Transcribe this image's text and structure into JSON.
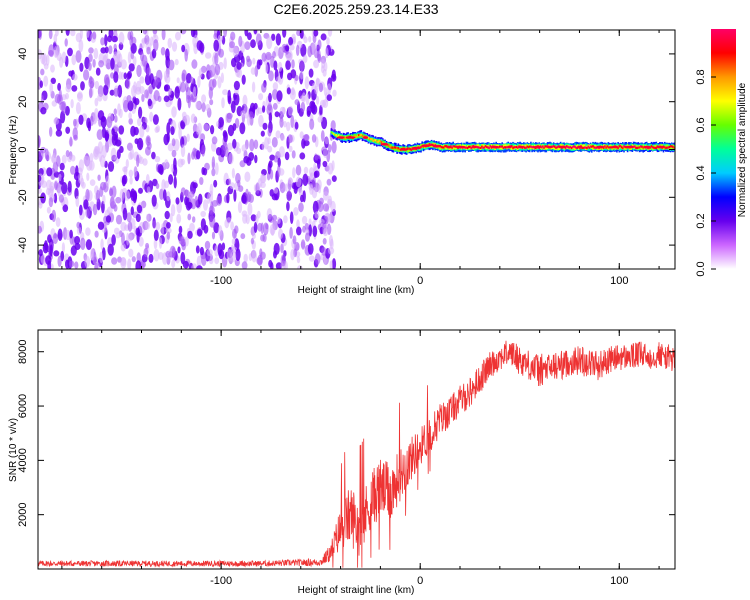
{
  "title": "C2E6.2025.259.23.14.E33",
  "chart_data": [
    {
      "type": "heatmap",
      "title": "C2E6.2025.259.23.14.E33",
      "xlabel": "Height of straight line (km)",
      "ylabel": "Frequency (Hz)",
      "xlim": [
        -192,
        128
      ],
      "ylim": [
        -50,
        50
      ],
      "xticks": [
        -100,
        0,
        100
      ],
      "yticks": [
        -40,
        -20,
        0,
        20,
        40
      ],
      "colorbar": {
        "label": "Normalized spectral amplitude",
        "range": [
          0,
          1
        ],
        "ticks": [
          "0.0",
          "0.2",
          "0.4",
          "0.6",
          "0.8"
        ],
        "colormap": [
          "#ffffff",
          "#cc66ff",
          "#6600ee",
          "#0000ff",
          "#00ccff",
          "#00ff99",
          "#66ff00",
          "#ffff00",
          "#ff9900",
          "#ff0000",
          "#ff0066"
        ]
      },
      "noise_region": {
        "x_from": -192,
        "x_to": -46,
        "freq_from": -50,
        "freq_to": 50,
        "amplitude": "0.0-0.15"
      },
      "signal_track": {
        "x": [
          -45,
          -40,
          -35,
          -30,
          -25,
          -20,
          -15,
          -10,
          -5,
          0,
          5,
          10,
          20,
          40,
          60,
          80,
          100,
          128
        ],
        "freq": [
          7,
          5,
          5,
          6,
          4,
          3,
          1,
          0,
          0,
          1,
          2,
          1,
          1,
          1,
          1,
          1,
          1,
          1
        ],
        "peak_amplitude": [
          0.2,
          0.7,
          0.8,
          0.7,
          0.6,
          0.7,
          0.8,
          0.85,
          0.9,
          0.9,
          0.95,
          0.95,
          1.0,
          1.0,
          1.0,
          1.0,
          0.95,
          0.9
        ]
      }
    },
    {
      "type": "line",
      "xlabel": "Height of straight line (km)",
      "ylabel": "SNR (10 * v/v)",
      "xlim": [
        -192,
        128
      ],
      "ylim": [
        0,
        8800
      ],
      "xticks": [
        -100,
        0,
        100
      ],
      "yticks": [
        2000,
        4000,
        6000,
        8000
      ],
      "color": "#ee3333",
      "series": [
        {
          "x": [
            -192,
            -160,
            -120,
            -80,
            -50,
            -45,
            -40,
            -35,
            -30,
            -25,
            -20,
            -15,
            -10,
            -5,
            0,
            5,
            10,
            15,
            20,
            25,
            30,
            35,
            40,
            45,
            50,
            55,
            60,
            65,
            70,
            75,
            80,
            85,
            90,
            95,
            100,
            105,
            110,
            115,
            120,
            128
          ],
          "values": [
            200,
            200,
            200,
            200,
            250,
            600,
            1500,
            2000,
            1500,
            2500,
            3000,
            2800,
            3500,
            4000,
            4500,
            5000,
            5500,
            5800,
            6200,
            6500,
            7000,
            7500,
            7800,
            8000,
            7700,
            7500,
            7300,
            7400,
            7500,
            7600,
            7700,
            7600,
            7500,
            7700,
            7800,
            7800,
            7900,
            7800,
            7900,
            7700
          ],
          "noise_band": [
            150,
            150,
            150,
            150,
            200,
            500,
            1200,
            1600,
            1600,
            1500,
            1600,
            1500,
            1400,
            1200,
            1000,
            1000,
            900,
            800,
            800,
            800,
            800,
            700,
            700,
            700,
            800,
            800,
            900,
            800,
            800,
            700,
            800,
            800,
            800,
            700,
            700,
            700,
            700,
            700,
            700,
            700
          ]
        }
      ]
    }
  ]
}
